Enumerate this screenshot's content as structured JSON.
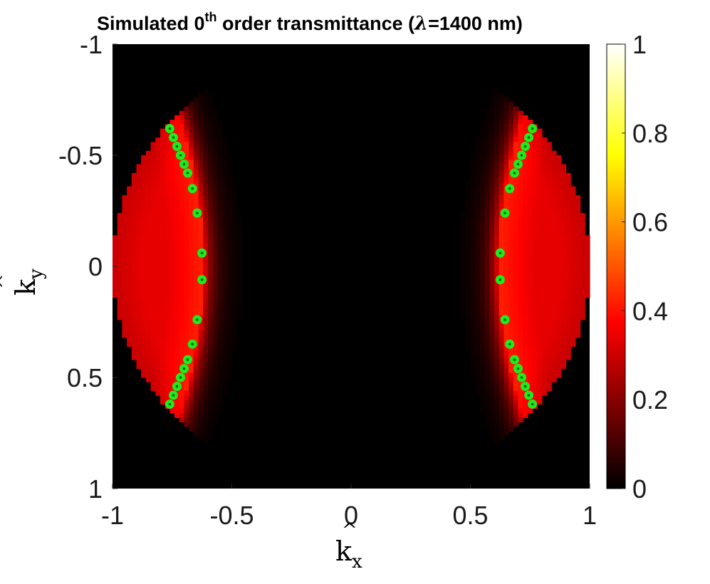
{
  "chart_data": {
    "type": "heatmap",
    "title": {
      "prefix": "Simulated 0",
      "superscript": "th",
      "middle": " order transmittance (",
      "symbol": "λ",
      "suffix": "=1400 nm)"
    },
    "xlabel": {
      "base": "k",
      "sub": "x",
      "hat": "^"
    },
    "ylabel": {
      "base": "k",
      "sub": "y",
      "hat": "^"
    },
    "xlim": [
      -1,
      1
    ],
    "ylim": [
      -1,
      1
    ],
    "y_direction": "reversed",
    "xticks": [
      -1,
      -0.5,
      0,
      0.5,
      1
    ],
    "xtick_labels": [
      "-1",
      "-0.5",
      "0",
      "0.5",
      "1"
    ],
    "yticks": [
      -1,
      -0.5,
      0,
      0.5,
      1
    ],
    "ytick_labels": [
      "-1",
      "-0.5",
      "0",
      "0.5",
      "1"
    ],
    "colorbar": {
      "colormap": "hot",
      "range": [
        0,
        1
      ],
      "ticks": [
        0,
        0.2,
        0.4,
        0.6,
        0.8,
        1
      ],
      "tick_labels": [
        "0",
        "0.2",
        "0.4",
        "0.6",
        "0.8",
        "1"
      ]
    },
    "field": {
      "disk_radius": 1.0,
      "band_inner_edge_kx": 0.62,
      "band_peak_value": 0.42,
      "band_edge_value": 0.3,
      "background_value": 0.0
    },
    "markers": {
      "color": "#1aee1a",
      "center_color": "#0a5a0a",
      "points": [
        [
          -0.76,
          -0.62
        ],
        [
          -0.745,
          -0.58
        ],
        [
          -0.73,
          -0.54
        ],
        [
          -0.715,
          -0.5
        ],
        [
          -0.7,
          -0.46
        ],
        [
          -0.685,
          -0.42
        ],
        [
          -0.665,
          -0.35
        ],
        [
          -0.645,
          -0.24
        ],
        [
          -0.625,
          -0.06
        ],
        [
          -0.625,
          0.06
        ],
        [
          -0.645,
          0.24
        ],
        [
          -0.665,
          0.35
        ],
        [
          -0.685,
          0.42
        ],
        [
          -0.7,
          0.46
        ],
        [
          -0.715,
          0.5
        ],
        [
          -0.73,
          0.54
        ],
        [
          -0.745,
          0.58
        ],
        [
          -0.76,
          0.62
        ],
        [
          0.76,
          -0.62
        ],
        [
          0.745,
          -0.58
        ],
        [
          0.73,
          -0.54
        ],
        [
          0.715,
          -0.5
        ],
        [
          0.7,
          -0.46
        ],
        [
          0.685,
          -0.42
        ],
        [
          0.665,
          -0.35
        ],
        [
          0.645,
          -0.24
        ],
        [
          0.625,
          -0.06
        ],
        [
          0.625,
          0.06
        ],
        [
          0.645,
          0.24
        ],
        [
          0.665,
          0.35
        ],
        [
          0.685,
          0.42
        ],
        [
          0.7,
          0.46
        ],
        [
          0.715,
          0.5
        ],
        [
          0.73,
          0.54
        ],
        [
          0.745,
          0.58
        ],
        [
          0.76,
          0.62
        ]
      ]
    }
  }
}
